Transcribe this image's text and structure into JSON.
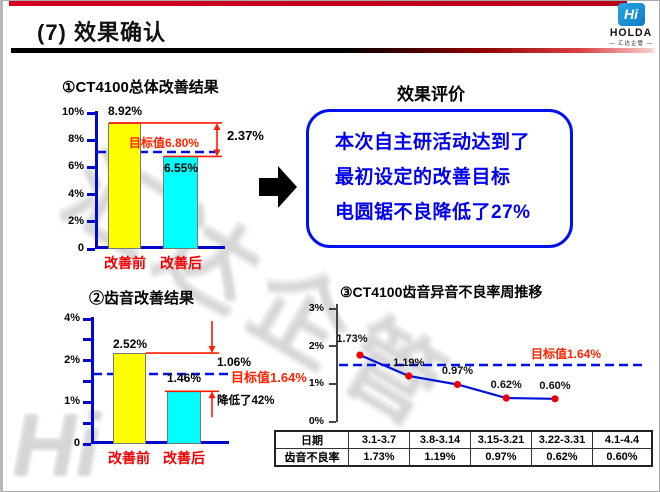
{
  "header": {
    "title": "(7) 效果确认",
    "logo": {
      "glyph": "Hi",
      "name": "HOLDA",
      "subtitle": "— 汇达企管 —"
    }
  },
  "watermark": {
    "text": "汇达企管",
    "corner_glyph": "Hi"
  },
  "evaluation": {
    "title": "效果评价",
    "lines": [
      "本次自主研活动达到了",
      "最初设定的改善目标",
      "电圆锯不良降低了27%"
    ]
  },
  "chart_data": [
    {
      "id": "overall-improvement",
      "type": "bar",
      "title": "①CT4100总体改善结果",
      "categories": [
        "改善前",
        "改善后"
      ],
      "values": [
        8.92,
        6.55
      ],
      "value_labels": [
        "8.92%",
        "6.55%"
      ],
      "target": 6.8,
      "target_label": "目标值6.80%",
      "diff_label": "2.37%",
      "ylim": [
        0,
        10
      ],
      "yticks": [
        "10%",
        "8%",
        "6%",
        "4%",
        "2%",
        "0"
      ],
      "bar_colors": [
        "#ffff00",
        "#00ffff"
      ]
    },
    {
      "id": "gear-noise-improvement",
      "type": "bar",
      "title": "②齿音改善结果",
      "categories": [
        "改善前",
        "改善后"
      ],
      "values": [
        2.52,
        1.46
      ],
      "value_labels": [
        "2.52%",
        "1.46%"
      ],
      "target": 1.64,
      "target_label": "目标值1.64%",
      "diff_label": "1.06%",
      "reduction_label": "降低了42%",
      "ylim": [
        0,
        4
      ],
      "yticks": [
        "4%",
        "",
        "2%",
        "",
        "1%",
        "",
        "0"
      ],
      "bar_colors": [
        "#ffff00",
        "#00ffff"
      ]
    },
    {
      "id": "weekly-trend",
      "type": "line",
      "title": "③CT4100齿音异音不良率周推移",
      "x": [
        "3.1-3.7",
        "3.8-3.14",
        "3.15-3.21",
        "3.22-3.31",
        "4.1-4.4"
      ],
      "values": [
        1.73,
        1.19,
        0.97,
        0.62,
        0.6
      ],
      "point_labels": [
        "1.73%",
        "1.19%",
        "0.97%",
        "0.62%",
        "0.60%"
      ],
      "target": 1.64,
      "target_label": "目标值1.64%",
      "ylim": [
        0,
        3
      ],
      "yticks": [
        "3%",
        "2%",
        "1%",
        "0%"
      ],
      "line_color": "#0011dd",
      "marker_color": "#f00000"
    }
  ],
  "table": {
    "rows": [
      [
        "日期",
        "3.1-3.7",
        "3.8-3.14",
        "3.15-3.21",
        "3.22-3.31",
        "4.1-4.4"
      ],
      [
        "齿音不良率",
        "1.73%",
        "1.19%",
        "0.97%",
        "0.62%",
        "0.60%"
      ]
    ]
  },
  "colors": {
    "bar_before": "#ffff00",
    "bar_after": "#00ffff",
    "axis_blue": "#0008cc",
    "dashed_target_blue": "#0011ee",
    "annotation_red": "#ff1a00",
    "label_red": "#f00000",
    "logo_blue": "#1390d7"
  }
}
